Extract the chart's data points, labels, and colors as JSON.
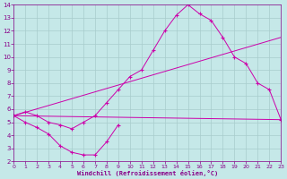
{
  "bg_color": "#c5e8e8",
  "line_color": "#cc00aa",
  "grid_color": "#a8cccc",
  "xlabel": "Windchill (Refroidissement éolien,°C)",
  "xlabel_color": "#880088",
  "tick_color": "#880088",
  "axis_color": "#880088",
  "xmin": 0,
  "xmax": 23,
  "ymin": 2,
  "ymax": 14,
  "yticks": [
    2,
    3,
    4,
    5,
    6,
    7,
    8,
    9,
    10,
    11,
    12,
    13,
    14
  ],
  "xticks": [
    0,
    1,
    2,
    3,
    4,
    5,
    6,
    7,
    8,
    9,
    10,
    11,
    12,
    13,
    14,
    15,
    16,
    17,
    18,
    19,
    20,
    21,
    22,
    23
  ],
  "series": [
    {
      "x": [
        0,
        1,
        2,
        3,
        4,
        5,
        6,
        7,
        8,
        9
      ],
      "y": [
        5.5,
        5.0,
        4.6,
        4.1,
        3.2,
        2.7,
        2.5,
        2.5,
        3.5,
        4.8
      ],
      "marker": true
    },
    {
      "x": [
        0,
        1,
        2,
        3,
        4,
        5,
        6,
        7,
        8,
        9,
        10,
        11,
        12,
        13,
        14,
        15,
        16,
        17,
        18,
        19,
        20,
        21,
        22,
        23
      ],
      "y": [
        5.5,
        5.8,
        5.5,
        5.0,
        4.8,
        4.5,
        5.0,
        5.5,
        6.5,
        7.5,
        8.5,
        9.0,
        10.5,
        12.0,
        13.2,
        14.0,
        13.3,
        12.8,
        11.5,
        10.0,
        9.5,
        8.0,
        7.5,
        5.2
      ],
      "marker": true
    },
    {
      "x": [
        0,
        23
      ],
      "y": [
        5.5,
        11.5
      ],
      "marker": false
    },
    {
      "x": [
        0,
        23
      ],
      "y": [
        5.5,
        5.2
      ],
      "marker": false
    }
  ]
}
